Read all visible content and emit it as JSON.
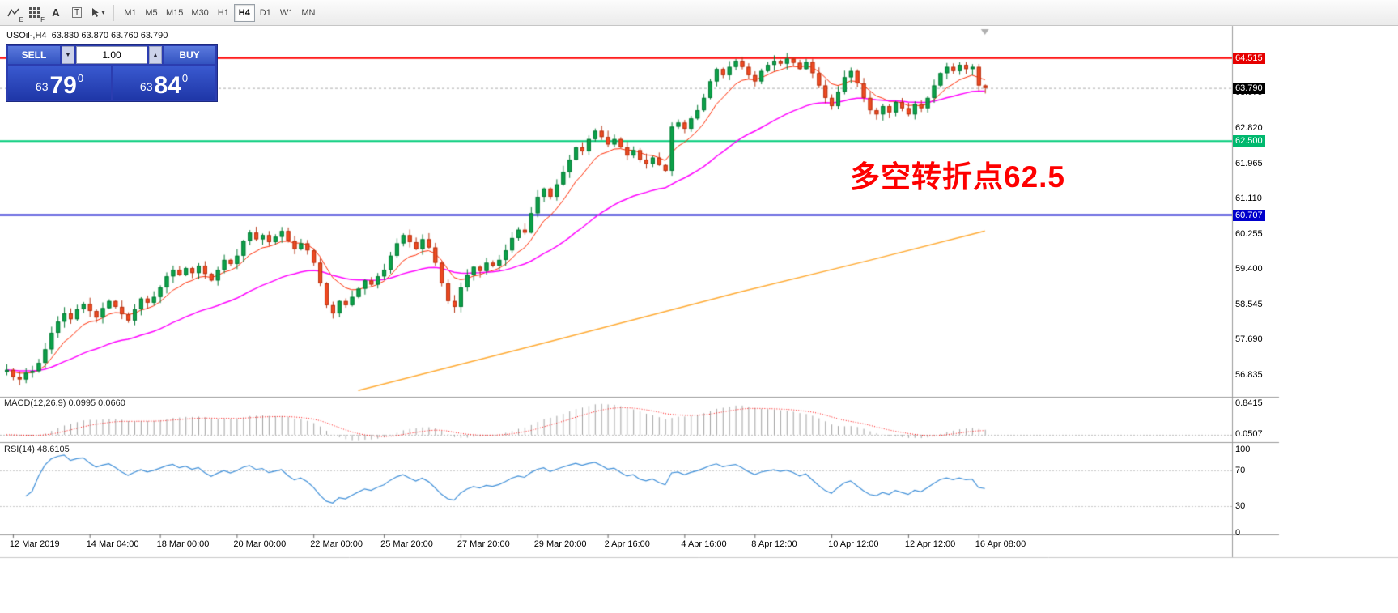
{
  "toolbar": {
    "tool_icons": [
      {
        "name": "indicator-icon",
        "letter": "E"
      },
      {
        "name": "grid-icon",
        "letter": "F"
      },
      {
        "name": "text-tool-icon",
        "letter": ""
      },
      {
        "name": "template-tool-icon",
        "letter": ""
      },
      {
        "name": "cursor-tool-icon",
        "letter": ""
      }
    ],
    "timeframes": [
      "M1",
      "M5",
      "M15",
      "M30",
      "H1",
      "H4",
      "D1",
      "W1",
      "MN"
    ],
    "active_timeframe": "H4"
  },
  "symbol_bar": {
    "symbol": "USOil-,H4",
    "ohlc": "63.830 63.870 63.760 63.790"
  },
  "trade_panel": {
    "sell_label": "SELL",
    "buy_label": "BUY",
    "volume": "1.00",
    "sell_small": "63",
    "sell_big": "79",
    "sell_sup": "0",
    "buy_small": "63",
    "buy_big": "84",
    "buy_sup": "0"
  },
  "annotation": {
    "text": "多空转折点62.5",
    "color": "#fe0000"
  },
  "price_axis": {
    "labels": [
      {
        "text": "63.675",
        "price": 63.675
      },
      {
        "text": "62.820",
        "price": 62.82
      },
      {
        "text": "61.965",
        "price": 61.965
      },
      {
        "text": "61.110",
        "price": 61.11
      },
      {
        "text": "60.255",
        "price": 60.255
      },
      {
        "text": "59.400",
        "price": 59.4
      },
      {
        "text": "58.545",
        "price": 58.545
      },
      {
        "text": "57.690",
        "price": 57.69
      },
      {
        "text": "56.835",
        "price": 56.835
      }
    ],
    "badges": [
      {
        "text": "64.515",
        "price": 64.515,
        "bg": "#e60000"
      },
      {
        "text": "63.790",
        "price": 63.79,
        "bg": "#000000"
      },
      {
        "text": "62.500",
        "price": 62.5,
        "bg": "#00b86e"
      },
      {
        "text": "60.707",
        "price": 60.707,
        "bg": "#0000cc"
      }
    ]
  },
  "hlines": [
    {
      "price": 64.515,
      "color": "#ff0000",
      "width": 2
    },
    {
      "price": 62.5,
      "color": "#00cc7a",
      "width": 2
    },
    {
      "price": 60.707,
      "color": "#0000cc",
      "width": 2
    }
  ],
  "bid_line": {
    "price": 63.79,
    "color": "#aaaaaa"
  },
  "macd_panel": {
    "label": "MACD(12,26,9) 0.0995 0.0660",
    "axis": [
      {
        "text": "0.8415",
        "value": 0.8415
      },
      {
        "text": "0.0507",
        "value": 0.0507
      }
    ],
    "fast": 12,
    "slow": 26,
    "signal": 9,
    "range": [
      -0.15,
      0.95
    ],
    "bar_color": "#a0a0a0",
    "signal_color": "#ff0000"
  },
  "rsi_panel": {
    "label": "RSI(14) 48.6105",
    "period": 14,
    "axis": [
      {
        "text": "100",
        "value": 100
      },
      {
        "text": "70",
        "value": 70
      },
      {
        "text": "30",
        "value": 30
      },
      {
        "text": "0",
        "value": 0
      }
    ],
    "line_color": "#3f8fd8",
    "levels": [
      70,
      30
    ]
  },
  "time_axis": {
    "labels": [
      {
        "text": "12 Mar 2019",
        "i": 1
      },
      {
        "text": "14 Mar 04:00",
        "i": 13
      },
      {
        "text": "18 Mar 00:00",
        "i": 24
      },
      {
        "text": "20 Mar 00:00",
        "i": 36
      },
      {
        "text": "22 Mar 00:00",
        "i": 48
      },
      {
        "text": "25 Mar 20:00",
        "i": 59
      },
      {
        "text": "27 Mar 20:00",
        "i": 71
      },
      {
        "text": "29 Mar 20:00",
        "i": 83
      },
      {
        "text": "2 Apr 16:00",
        "i": 94
      },
      {
        "text": "4 Apr 16:00",
        "i": 106
      },
      {
        "text": "8 Apr 12:00",
        "i": 117
      },
      {
        "text": "10 Apr 12:00",
        "i": 129
      },
      {
        "text": "12 Apr 12:00",
        "i": 141
      },
      {
        "text": "16 Apr 08:00",
        "i": 152
      }
    ]
  },
  "chart_data": {
    "type": "candlestick",
    "symbol": "USOil-",
    "timeframe": "H4",
    "title": "USOil-,H4 63.830 63.870 63.760 63.790",
    "ylim_visible": [
      56.36,
      65.25
    ],
    "y_tick_step": 0.855,
    "first_open": 56.9,
    "closes": [
      56.95,
      56.78,
      56.72,
      56.88,
      56.92,
      57.12,
      57.45,
      57.85,
      58.12,
      58.32,
      58.18,
      58.42,
      58.55,
      58.38,
      58.22,
      58.45,
      58.62,
      58.48,
      58.3,
      58.15,
      58.42,
      58.68,
      58.58,
      58.72,
      58.95,
      59.22,
      59.38,
      59.25,
      59.42,
      59.3,
      59.48,
      59.28,
      59.12,
      59.38,
      59.62,
      59.52,
      59.72,
      60.08,
      60.28,
      60.12,
      60.22,
      60.05,
      60.18,
      60.32,
      60.08,
      59.88,
      60.02,
      59.85,
      59.55,
      59.05,
      58.52,
      58.32,
      58.62,
      58.52,
      58.72,
      58.92,
      59.12,
      59.02,
      59.22,
      59.38,
      59.72,
      60.02,
      60.22,
      60.05,
      59.88,
      60.12,
      59.92,
      59.55,
      59.05,
      58.62,
      58.48,
      58.95,
      59.25,
      59.45,
      59.35,
      59.55,
      59.48,
      59.62,
      59.85,
      60.15,
      60.35,
      60.28,
      60.75,
      61.15,
      61.35,
      61.15,
      61.45,
      61.75,
      62.05,
      62.35,
      62.25,
      62.55,
      62.75,
      62.6,
      62.42,
      62.55,
      62.35,
      62.15,
      62.28,
      62.05,
      61.95,
      62.1,
      61.92,
      61.78,
      62.85,
      62.95,
      62.8,
      63.05,
      63.25,
      63.55,
      63.95,
      64.25,
      64.1,
      64.3,
      64.45,
      64.3,
      64.1,
      63.95,
      64.2,
      64.35,
      64.45,
      64.38,
      64.5,
      64.4,
      64.25,
      64.42,
      64.15,
      63.85,
      63.55,
      63.35,
      63.7,
      64.05,
      64.2,
      63.9,
      63.55,
      63.25,
      63.15,
      63.35,
      63.2,
      63.45,
      63.3,
      63.15,
      63.4,
      63.3,
      63.55,
      63.85,
      64.15,
      64.3,
      64.2,
      64.35,
      64.25,
      64.3,
      63.85,
      63.79
    ],
    "wick_max": 0.14,
    "candle_spacing": 7.9,
    "candle_width": 5,
    "up_color": "#0ca24a",
    "up_border": "#067a35",
    "down_color": "#f04a22",
    "down_border": "#b53312",
    "ma": [
      {
        "name": "ema-fast",
        "period": 8,
        "color": "#ff2a00",
        "width": 1
      },
      {
        "name": "ema-slow",
        "period": 34,
        "color": "#ff00ff",
        "width": 1.5
      }
    ],
    "long_ma": {
      "color": "#ffaa33",
      "width": 1.5,
      "anchors": [
        [
          55,
          56.45
        ],
        [
          85,
          57.64
        ],
        [
          115,
          58.85
        ],
        [
          135,
          59.61
        ],
        [
          153,
          60.32
        ]
      ]
    }
  }
}
